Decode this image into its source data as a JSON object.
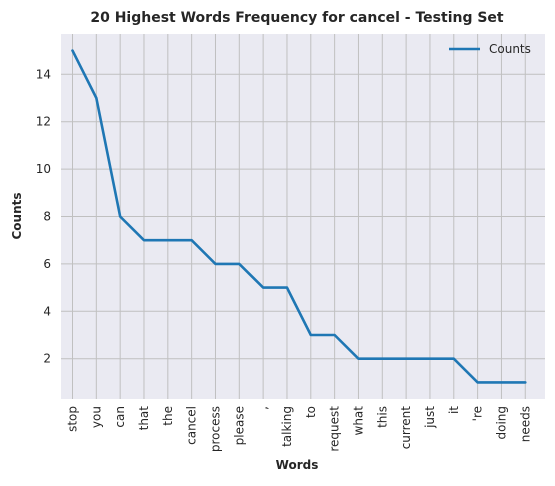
{
  "chart_data": {
    "type": "line",
    "title": "20 Highest Words Frequency for cancel - Testing Set",
    "xlabel": "Words",
    "ylabel": "Counts",
    "categories": [
      "stop",
      "you",
      "can",
      "that",
      "the",
      "cancel",
      "process",
      "please",
      ",",
      "talking",
      "to",
      "request",
      "what",
      "this",
      "current",
      "just",
      "it",
      "'re",
      "doing",
      "needs"
    ],
    "series": [
      {
        "name": "Counts",
        "values": [
          15,
          13,
          8,
          7,
          7,
          7,
          6,
          6,
          5,
          5,
          3,
          3,
          2,
          2,
          2,
          2,
          2,
          1,
          1,
          1
        ],
        "color": "#1f77b4"
      }
    ],
    "yticks": [
      2,
      4,
      6,
      8,
      10,
      12,
      14
    ],
    "ylim": [
      0.3,
      15.7
    ],
    "grid": true,
    "legend_position": "top-right",
    "background": "#eaeaf2",
    "grid_color": "#c0c0c0"
  }
}
